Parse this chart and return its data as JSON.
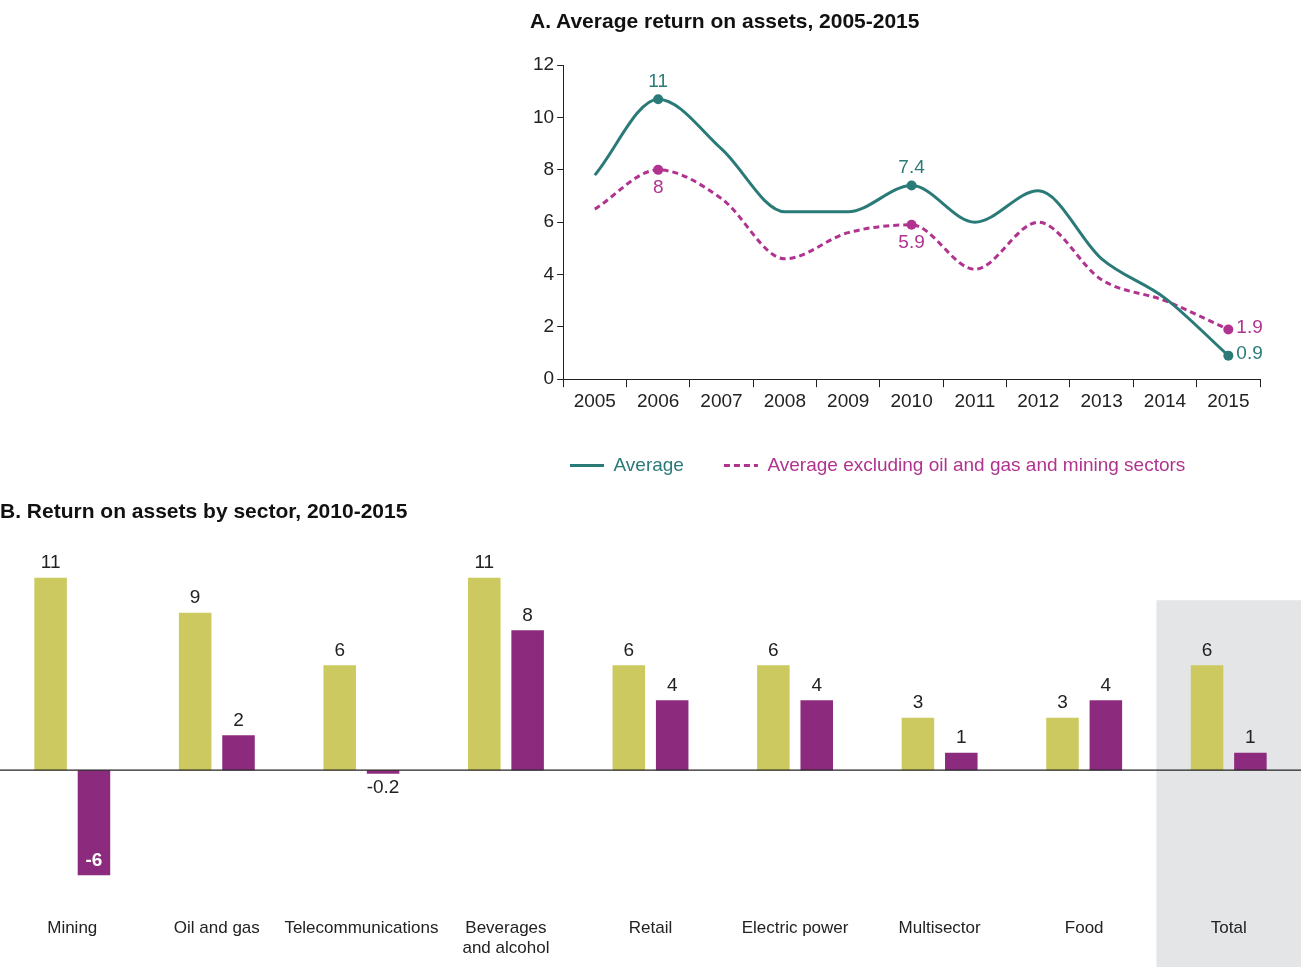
{
  "chart_data": [
    {
      "type": "line",
      "title": "A. Average return on assets, 2005-2015",
      "categories": [
        "2005",
        "2006",
        "2007",
        "2008",
        "2009",
        "2010",
        "2011",
        "2012",
        "2013",
        "2014",
        "2015"
      ],
      "series": [
        {
          "name": "Average",
          "color": "#2a7b78",
          "values": [
            7.8,
            10.7,
            8.8,
            6.4,
            6.4,
            7.4,
            6.0,
            7.2,
            4.6,
            3.1,
            0.9
          ],
          "value_labels": [
            null,
            "11",
            null,
            null,
            null,
            "7.4",
            null,
            null,
            null,
            null,
            "0.9"
          ]
        },
        {
          "name": "Average excluding oil and gas and mining sectors",
          "color": "#b0338f",
          "line_style": "dashed",
          "values": [
            6.5,
            8.0,
            6.9,
            4.6,
            5.6,
            5.9,
            4.2,
            6.0,
            3.8,
            3.0,
            1.9
          ],
          "value_labels": [
            null,
            "8",
            null,
            null,
            null,
            "5.9",
            null,
            null,
            null,
            null,
            "1.9"
          ]
        }
      ],
      "ylim": [
        0,
        12
      ],
      "yticks": [
        0,
        2,
        4,
        6,
        8,
        10,
        12
      ],
      "grid": false,
      "legend": "bottom"
    },
    {
      "type": "bar",
      "title": "B. Return on assets by sector, 2010-2015",
      "categories": [
        "Mining",
        "Oil and gas",
        "Telecommunications",
        "Beverages and alcohol",
        "Retail",
        "Electric power",
        "Multisector",
        "Food",
        "Total"
      ],
      "series": [
        {
          "color": "#cbc95f",
          "values": [
            11,
            9,
            6,
            11,
            6,
            6,
            3,
            3,
            6
          ]
        },
        {
          "color": "#8c2b7d",
          "values": [
            -6,
            2,
            -0.2,
            8,
            4,
            4,
            1,
            4,
            1
          ]
        }
      ],
      "data_labels": true,
      "legend": false,
      "grid": false,
      "tick_labels": "x",
      "bands": [
        {
          "axis": "x",
          "from": "Total",
          "to": "Total",
          "color": "#e4e5e7"
        }
      ]
    }
  ]
}
